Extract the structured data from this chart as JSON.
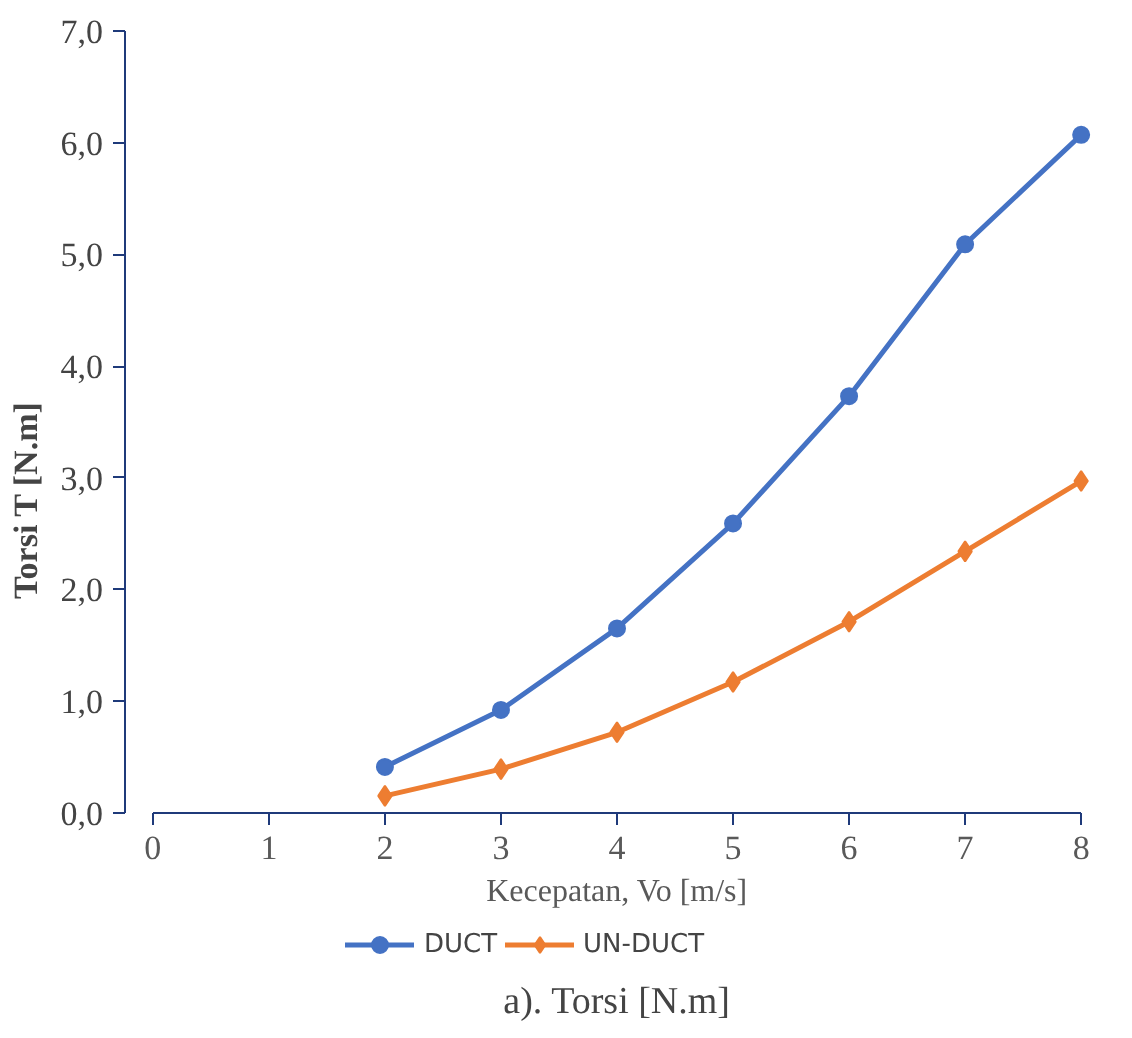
{
  "chart_data": {
    "type": "line",
    "ylabel": "Torsi T [N.m]",
    "xlabel": "Kecepatan, Vo [m/s]",
    "x": [
      2,
      3,
      4,
      5,
      6,
      7,
      8
    ],
    "series": [
      {
        "name": "DUCT",
        "color": "#4472c4",
        "marker": "circle",
        "values": [
          0.41,
          0.92,
          1.65,
          2.59,
          3.73,
          5.09,
          6.07
        ]
      },
      {
        "name": "UN-DUCT",
        "color": "#ed7d31",
        "marker": "diamond",
        "values": [
          0.15,
          0.39,
          0.72,
          1.17,
          1.71,
          2.34,
          2.97
        ]
      }
    ],
    "xlim": [
      0,
      8
    ],
    "xticks": [
      0,
      1,
      2,
      3,
      4,
      5,
      6,
      7,
      8
    ],
    "ylim": [
      0,
      7
    ],
    "yticks": [
      {
        "value": 0,
        "label": "0,0"
      },
      {
        "value": 1,
        "label": "1,0"
      },
      {
        "value": 2,
        "label": "2,0"
      },
      {
        "value": 3,
        "label": "3,0"
      },
      {
        "value": 4,
        "label": "4,0"
      },
      {
        "value": 5,
        "label": "5,0"
      },
      {
        "value": 6,
        "label": "6,0"
      },
      {
        "value": 7,
        "label": "7,0"
      }
    ],
    "grid": false,
    "legend": "bottom",
    "line_style": "solid",
    "annotations": [
      "a). Torsi [N.m]"
    ]
  }
}
